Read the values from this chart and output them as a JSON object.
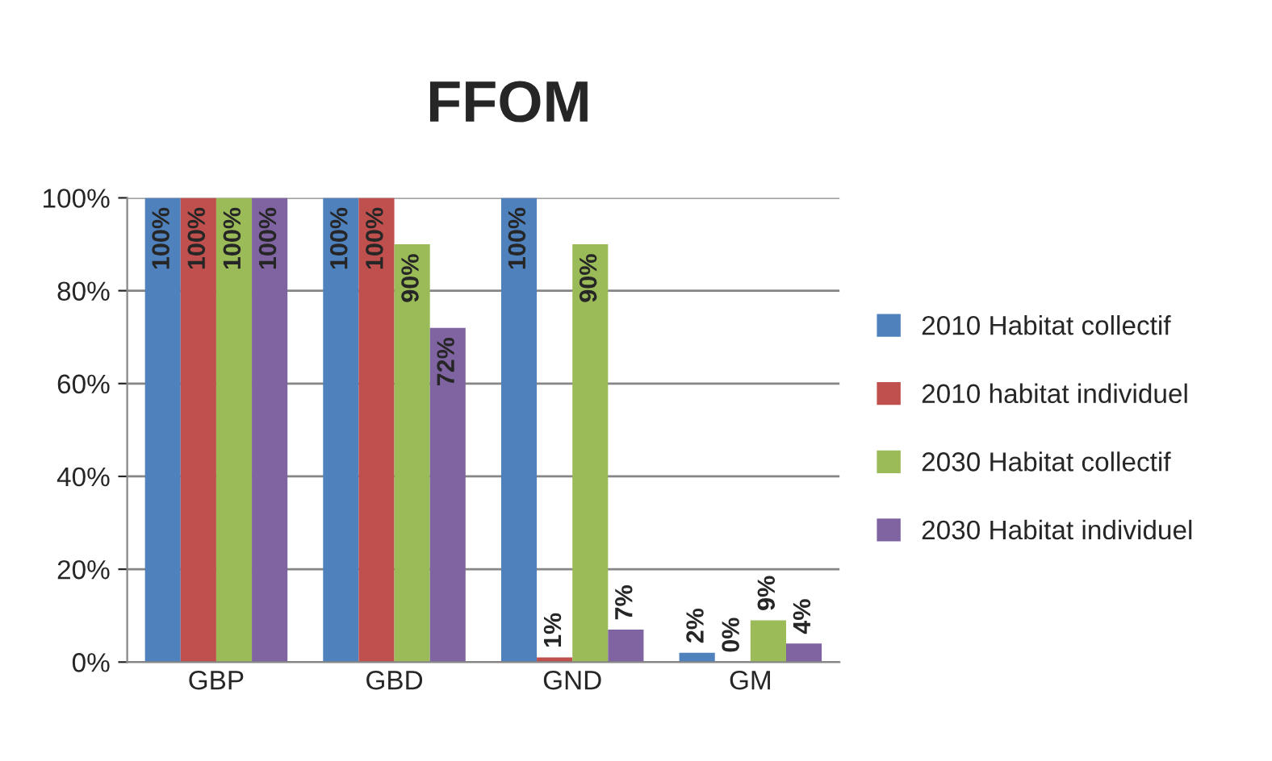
{
  "chart_data": {
    "type": "bar",
    "title": "FFOM",
    "categories": [
      "GBP",
      "GBD",
      "GND",
      "GM"
    ],
    "series": [
      {
        "name": "2010 Habitat collectif",
        "color": "#4f81bd",
        "values": [
          100,
          100,
          100,
          2
        ],
        "value_labels": [
          "100%",
          "100%",
          "100%",
          "2%"
        ]
      },
      {
        "name": "2010 habitat individuel",
        "color": "#c0504d",
        "values": [
          100,
          100,
          1,
          0
        ],
        "value_labels": [
          "100%",
          "100%",
          "1%",
          "0%"
        ]
      },
      {
        "name": "2030 Habitat collectif",
        "color": "#9bbb59",
        "values": [
          100,
          90,
          90,
          9
        ],
        "value_labels": [
          "100%",
          "90%",
          "90%",
          "9%"
        ]
      },
      {
        "name": "2030 Habitat individuel",
        "color": "#8064a2",
        "values": [
          100,
          72,
          7,
          4
        ],
        "value_labels": [
          "100%",
          "72%",
          "7%",
          "4%"
        ]
      }
    ],
    "ylim": [
      0,
      100
    ],
    "yticks": [
      {
        "value": 0,
        "label": "0%"
      },
      {
        "value": 20,
        "label": "20%"
      },
      {
        "value": 40,
        "label": "40%"
      },
      {
        "value": 60,
        "label": "60%"
      },
      {
        "value": 80,
        "label": "80%"
      },
      {
        "value": 100,
        "label": "100%"
      }
    ],
    "grid": "y",
    "legend": "right"
  }
}
